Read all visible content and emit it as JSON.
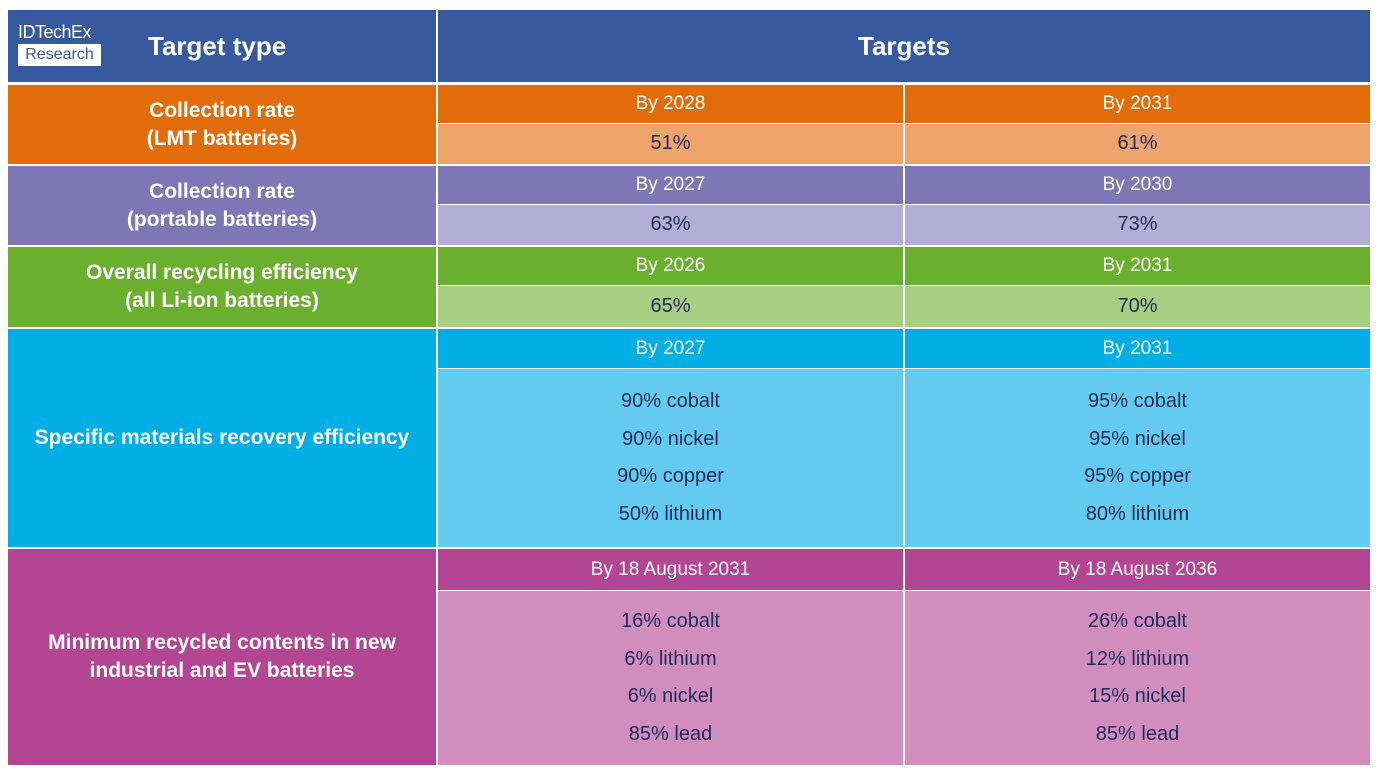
{
  "logo": {
    "line1": "IDTechEx",
    "line2": "Research"
  },
  "header": {
    "target_type": "Target type",
    "targets": "Targets"
  },
  "rows": [
    {
      "type": [
        "Collection rate",
        "(LMT batteries)"
      ],
      "targets": [
        {
          "deadline": "By 2028",
          "items": [
            "51%"
          ]
        },
        {
          "deadline": "By 2031",
          "items": [
            "61%"
          ]
        }
      ]
    },
    {
      "type": [
        "Collection rate",
        "(portable batteries)"
      ],
      "targets": [
        {
          "deadline": "By 2027",
          "items": [
            "63%"
          ]
        },
        {
          "deadline": "By 2030",
          "items": [
            "73%"
          ]
        }
      ]
    },
    {
      "type": [
        "Overall recycling efficiency",
        "(all Li-ion batteries)"
      ],
      "targets": [
        {
          "deadline": "By 2026",
          "items": [
            "65%"
          ]
        },
        {
          "deadline": "By 2031",
          "items": [
            "70%"
          ]
        }
      ]
    },
    {
      "type": [
        "Specific materials recovery efficiency"
      ],
      "targets": [
        {
          "deadline": "By 2027",
          "items": [
            "90% cobalt",
            "90% nickel",
            "90% copper",
            "50% lithium"
          ]
        },
        {
          "deadline": "By 2031",
          "items": [
            "95% cobalt",
            "95% nickel",
            "95% copper",
            "80% lithium"
          ]
        }
      ]
    },
    {
      "type": [
        "Minimum recycled contents in new",
        "industrial and EV batteries"
      ],
      "targets": [
        {
          "deadline": "By 18 August 2031",
          "items": [
            "16% cobalt",
            "6% lithium",
            "6% nickel",
            "85% lead"
          ]
        },
        {
          "deadline": "By 18 August 2036",
          "items": [
            "26% cobalt",
            "12% lithium",
            "15% nickel",
            "85% lead"
          ]
        }
      ]
    }
  ]
}
